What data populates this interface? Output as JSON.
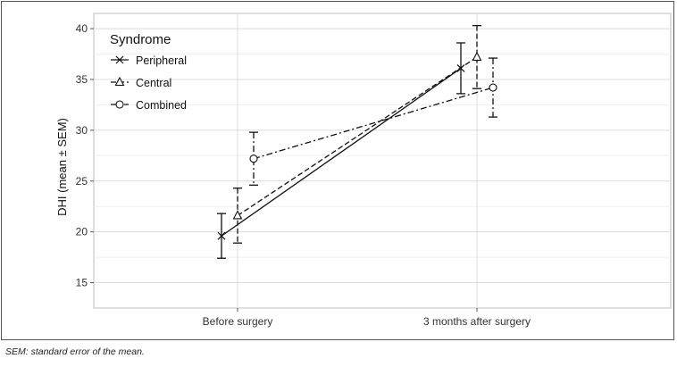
{
  "chart_data": {
    "type": "line",
    "categories": [
      "Before surgery",
      "3 months after surgery"
    ],
    "ylabel": "DHI (mean ± SEM)",
    "xlabel": "",
    "ylim": [
      12.5,
      41.5
    ],
    "yticks": [
      15,
      20,
      25,
      30,
      35,
      40
    ],
    "grid": true,
    "legend": {
      "title": "Syndrome",
      "placement": "top-left"
    },
    "series": [
      {
        "name": "Peripheral",
        "marker": "x-icon",
        "dash": "solid",
        "values": [
          19.6,
          36.1
        ],
        "sem": [
          2.2,
          2.5
        ]
      },
      {
        "name": "Central",
        "marker": "triangle-icon",
        "dash": "dashed",
        "values": [
          21.6,
          37.2
        ],
        "sem": [
          2.7,
          3.1
        ]
      },
      {
        "name": "Combined",
        "marker": "circle-icon",
        "dash": "dotdash",
        "values": [
          27.2,
          34.2
        ],
        "sem": [
          2.6,
          2.9
        ]
      }
    ]
  },
  "footnote": "SEM: standard error of the mean."
}
